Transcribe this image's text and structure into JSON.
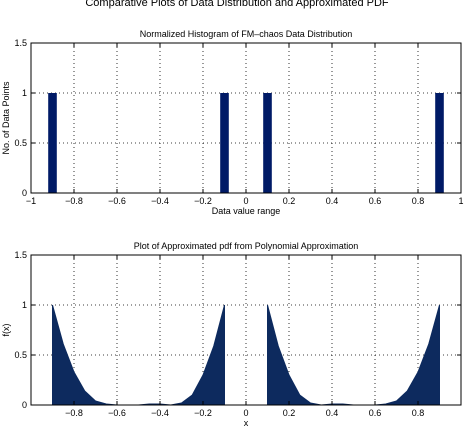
{
  "suptitle": "Comparative Plots of Data Distribution and Approximated PDF",
  "chart_data": [
    {
      "type": "bar",
      "title": "Normalized Histogram of FM–chaos Data Distribution",
      "xlabel": "Data value range",
      "ylabel": "No. of Data Points",
      "xlim": [
        -1,
        1
      ],
      "ylim": [
        0,
        1.5
      ],
      "xticks": [
        -1,
        -0.8,
        -0.6,
        -0.4,
        -0.2,
        0,
        0.2,
        0.4,
        0.6,
        0.8,
        1
      ],
      "xtick_labels": [
        "−1",
        "−0.8",
        "−0.6",
        "−0.4",
        "−0.2",
        "0",
        "0.2",
        "0.4",
        "0.6",
        "0.8",
        "1"
      ],
      "yticks": [
        0,
        0.5,
        1,
        1.5
      ],
      "ytick_labels": [
        "0",
        "0.5",
        "1",
        "1.5"
      ],
      "grid": true,
      "bar_width": 0.04,
      "x": [
        -0.9,
        -0.1,
        0.1,
        0.9
      ],
      "values": [
        1,
        1,
        1,
        1
      ],
      "color": "#001a66"
    },
    {
      "type": "area",
      "title": "Plot of Approximated pdf from Polynomial Approximation",
      "xlabel": "x",
      "ylabel": "f(x)",
      "xlim": [
        -1,
        1
      ],
      "ylim": [
        0,
        1.5
      ],
      "xticks": [
        -1,
        -0.8,
        -0.6,
        -0.4,
        -0.2,
        0,
        0.2,
        0.4,
        0.6,
        0.8,
        1
      ],
      "xtick_labels": [
        "",
        "−0.8",
        "−0.6",
        "−0.4",
        "−0.2",
        "0",
        "0.2",
        "0.4",
        "0.6",
        "0.8",
        ""
      ],
      "yticks": [
        0,
        0.5,
        1,
        1.5
      ],
      "ytick_labels": [
        "0",
        "0.5",
        "1",
        "1.5"
      ],
      "grid": true,
      "color": "#0d2a5e",
      "series": [
        {
          "x": [
            -0.9,
            -0.85,
            -0.8,
            -0.75,
            -0.7,
            -0.65,
            -0.6,
            -0.55,
            -0.5,
            -0.45,
            -0.4,
            -0.35,
            -0.3,
            -0.25,
            -0.2,
            -0.15,
            -0.1
          ],
          "values": [
            1.0,
            0.61,
            0.33,
            0.14,
            0.04,
            0.01,
            0.0,
            0.0,
            0.0,
            0.01,
            0.01,
            0.0,
            0.02,
            0.1,
            0.3,
            0.59,
            1.0
          ]
        },
        {
          "x": [
            0.1,
            0.15,
            0.2,
            0.25,
            0.3,
            0.35,
            0.4,
            0.45,
            0.5,
            0.55,
            0.6,
            0.65,
            0.7,
            0.75,
            0.8,
            0.85,
            0.9
          ],
          "values": [
            1.0,
            0.59,
            0.3,
            0.1,
            0.02,
            0.0,
            0.01,
            0.01,
            0.0,
            0.0,
            0.0,
            0.01,
            0.04,
            0.14,
            0.33,
            0.61,
            1.0
          ]
        }
      ]
    }
  ]
}
